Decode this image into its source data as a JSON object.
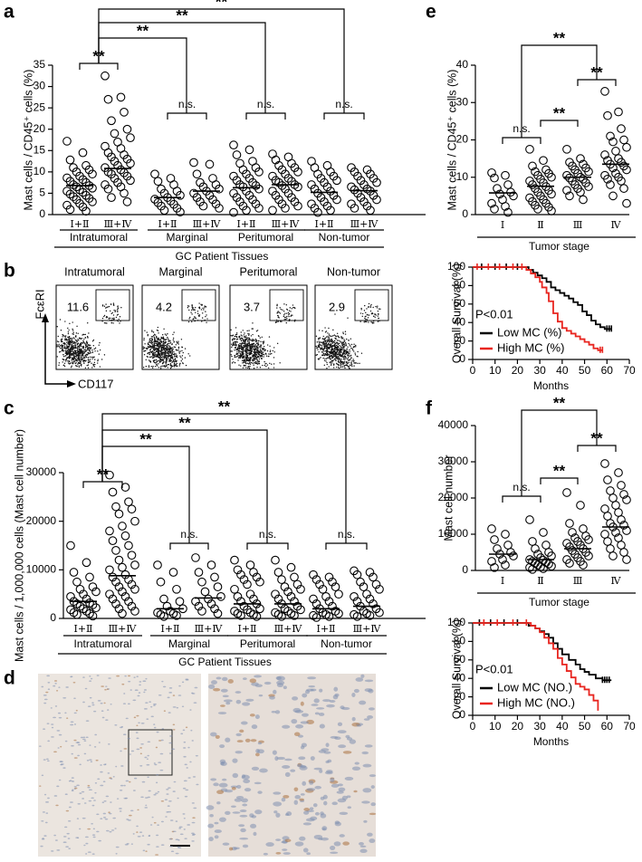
{
  "panel_labels": [
    "a",
    "b",
    "c",
    "d",
    "e",
    "f"
  ],
  "chart_data": [
    {
      "type": "strip",
      "ylabel": "Mast cells / CD45⁺ cells (%)",
      "categories": [
        "Ⅰ+Ⅱ",
        "Ⅲ+Ⅳ",
        "Ⅰ+Ⅱ",
        "Ⅲ+Ⅳ",
        "Ⅰ+Ⅱ",
        "Ⅲ+Ⅳ",
        "Ⅰ+Ⅱ",
        "Ⅲ+Ⅳ"
      ],
      "group_labels": [
        "Intratumoral",
        "Marginal",
        "Peritumoral",
        "Non-tumor"
      ],
      "xlabel": "GC Patient Tissues",
      "values": [
        [
          17.2,
          14.5,
          12.8,
          11.5,
          11,
          10.5,
          10,
          9.5,
          9,
          8.6,
          8.2,
          7.8,
          7.5,
          7,
          6.8,
          6.5,
          6.2,
          5.8,
          5.5,
          5.2,
          4.8,
          4.5,
          4.2,
          3.8,
          3.5,
          3,
          2.6,
          2.2,
          1.8,
          1.2,
          0.8
        ],
        [
          32.5,
          27.5,
          27,
          24,
          22,
          20,
          19,
          18,
          17,
          16,
          15.5,
          14.5,
          14,
          13.5,
          13,
          12.5,
          12,
          11.5,
          11,
          10.5,
          10,
          9.8,
          9.5,
          9,
          8.5,
          8,
          7.5,
          7,
          6.5,
          6,
          5,
          4,
          3
        ],
        [
          9.5,
          8.5,
          7.8,
          7,
          6,
          5.5,
          5,
          4.5,
          4,
          3.6,
          3.2,
          2.8,
          2.4,
          2,
          1.5,
          1,
          0.6
        ],
        [
          12.2,
          11.8,
          9.5,
          8.5,
          7.5,
          7,
          6.5,
          6,
          5.5,
          5,
          4.5,
          4,
          3.5,
          3,
          2.5,
          2,
          1.5
        ],
        [
          16.3,
          15.2,
          14,
          12.5,
          12,
          11,
          10.5,
          10,
          9.5,
          9,
          8.5,
          8,
          7.5,
          7,
          6.8,
          6.5,
          6,
          5.5,
          5,
          4.5,
          4,
          3.5,
          3,
          2.5,
          2,
          1.5,
          1,
          0.5
        ],
        [
          14.2,
          13.5,
          12.8,
          12,
          11.5,
          11,
          10.5,
          10,
          9.5,
          9,
          8.5,
          8,
          7.8,
          7.5,
          7,
          6.8,
          6.5,
          6,
          5.5,
          5,
          4.5,
          4,
          3.5,
          3,
          2.5,
          2,
          1.5,
          1
        ],
        [
          12.5,
          11.5,
          11,
          10,
          9.5,
          9,
          8.5,
          8,
          7.5,
          7,
          6.5,
          6,
          5.5,
          5,
          4.5,
          4,
          3.5,
          3,
          2.5,
          2,
          1.5,
          1,
          0.5
        ],
        [
          11,
          10.5,
          10,
          9.5,
          9,
          8.5,
          8,
          7.5,
          7,
          6.5,
          6,
          5.8,
          5.5,
          5,
          4.5,
          4,
          3.5,
          3,
          2.5,
          2,
          1.5,
          1
        ]
      ],
      "means": [
        6.8,
        10.8,
        4.0,
        5.5,
        6.3,
        7.0,
        5.2,
        5.6
      ],
      "ylim": [
        0,
        35
      ],
      "yticks": [
        0,
        5,
        10,
        15,
        20,
        25,
        30,
        35
      ],
      "annotations": [
        "**",
        "**",
        "**",
        "**",
        "n.s.",
        "n.s.",
        "n.s."
      ]
    },
    {
      "type": "flow",
      "panels": [
        "Intratumoral",
        "Marginal",
        "Peritumoral",
        "Non-tumor"
      ],
      "values": [
        11.6,
        4.2,
        3.7,
        2.9
      ],
      "xlabel": "CD117",
      "ylabel": "FcεRI"
    },
    {
      "type": "strip",
      "ylabel": "Mast cells / 1,000,000 cells (Mast cell number)",
      "categories": [
        "Ⅰ+Ⅱ",
        "Ⅲ+Ⅳ",
        "Ⅰ+Ⅱ",
        "Ⅲ+Ⅳ",
        "Ⅰ+Ⅱ",
        "Ⅲ+Ⅳ",
        "Ⅰ+Ⅱ",
        "Ⅲ+Ⅳ"
      ],
      "group_labels": [
        "Intratumoral",
        "Marginal",
        "Peritumoral",
        "Non-tumor"
      ],
      "xlabel": "GC Patient Tissues",
      "values": [
        [
          15000,
          11500,
          9500,
          8500,
          7500,
          6500,
          6000,
          5500,
          5000,
          4500,
          4000,
          3500,
          3200,
          3000,
          2800,
          2500,
          2200,
          2000,
          1800,
          1500,
          1200,
          1000,
          800,
          500
        ],
        [
          29500,
          27000,
          26000,
          24000,
          23000,
          22500,
          21500,
          20000,
          19000,
          18000,
          17000,
          16000,
          15000,
          14000,
          13000,
          12000,
          11000,
          10500,
          10000,
          9000,
          8500,
          8000,
          7500,
          7000,
          6500,
          6000,
          5500,
          5000,
          4500,
          4000,
          3500,
          3000,
          2500,
          2000,
          1500,
          1000
        ],
        [
          11000,
          9500,
          7500,
          6000,
          4000,
          3500,
          2500,
          2000,
          1500,
          1200,
          1000,
          800,
          600,
          400
        ],
        [
          12500,
          11000,
          9500,
          8500,
          7500,
          6500,
          5500,
          4500,
          4000,
          3500,
          3000,
          2500,
          2000,
          1500,
          1000
        ],
        [
          12000,
          11000,
          10000,
          9500,
          9000,
          8500,
          8000,
          7500,
          7000,
          6000,
          5000,
          4500,
          4000,
          3500,
          3000,
          2500,
          2000,
          1800,
          1500,
          1200,
          1000,
          800,
          600,
          400
        ],
        [
          12000,
          10500,
          9500,
          8500,
          8000,
          7000,
          6500,
          6000,
          5500,
          5000,
          4500,
          4000,
          3500,
          3000,
          2500,
          2000,
          1800,
          1500,
          1200,
          1000,
          800,
          600,
          400
        ],
        [
          9000,
          8500,
          8000,
          7500,
          7000,
          6500,
          6000,
          5000,
          4500,
          4000,
          3500,
          3000,
          2500,
          2000,
          1500,
          1200,
          1000,
          800,
          600,
          400,
          200
        ],
        [
          9800,
          9500,
          9000,
          8500,
          7500,
          7000,
          6500,
          6000,
          5000,
          4500,
          4000,
          3500,
          3000,
          2500,
          2000,
          1500,
          1200,
          1000,
          800,
          600,
          400
        ]
      ],
      "means": [
        3500,
        8800,
        2000,
        4200,
        3000,
        3000,
        2000,
        2500
      ],
      "ylim": [
        0,
        30000
      ],
      "yticks": [
        0,
        10000,
        20000,
        30000
      ],
      "annotations": [
        "**",
        "**",
        "**",
        "**",
        "n.s.",
        "n.s.",
        "n.s."
      ]
    },
    {
      "type": "strip",
      "ylabel": "Mast cells / CD45⁺ cells (%)",
      "categories": [
        "Ⅰ",
        "Ⅱ",
        "Ⅲ",
        "Ⅳ"
      ],
      "xlabel": "Tumor stage",
      "values": [
        [
          11.2,
          10.5,
          9.8,
          8,
          7,
          6,
          5.5,
          5,
          4,
          3,
          2.2,
          1.5,
          0.6
        ],
        [
          17.5,
          14.5,
          13,
          12,
          11.5,
          11,
          10.5,
          10,
          9.5,
          9,
          8.5,
          8,
          7.5,
          7,
          6.5,
          6,
          5.5,
          5,
          4.5,
          4,
          3.5,
          3,
          2.5,
          2,
          1.5,
          1
        ],
        [
          17.5,
          15,
          14,
          13.5,
          13,
          12.5,
          12,
          11.5,
          11,
          10.5,
          10,
          9.8,
          9.5,
          9,
          8.5,
          8,
          7.5,
          7,
          6.5,
          6,
          5,
          4
        ],
        [
          33,
          27.5,
          26.5,
          23,
          21,
          20,
          19.5,
          18,
          17,
          16,
          15,
          14.5,
          14,
          13.5,
          13,
          12.5,
          12,
          11,
          10.5,
          10,
          9.5,
          9,
          8,
          7,
          5,
          3
        ]
      ],
      "means": [
        5.8,
        7.6,
        10,
        13.5
      ],
      "ylim": [
        0,
        40
      ],
      "yticks": [
        0,
        10,
        20,
        30,
        40
      ],
      "annotations": [
        "n.s.",
        "**",
        "**",
        "**"
      ]
    },
    {
      "type": "km",
      "ylabel": "Overall Survival (%)",
      "xlabel": "Months",
      "annotation": "P<0.01",
      "xlim": [
        0,
        70
      ],
      "xticks": [
        0,
        10,
        20,
        30,
        40,
        50,
        60,
        70
      ],
      "ylim": [
        0,
        100
      ],
      "yticks": [
        0,
        20,
        40,
        60,
        80,
        100
      ],
      "series": [
        {
          "name": "Low MC (%)",
          "color": "#000000",
          "x": [
            0,
            25,
            27,
            29,
            31,
            33,
            35,
            37,
            39,
            41,
            43,
            45,
            47,
            49,
            51,
            53,
            55,
            57,
            59,
            62
          ],
          "values": [
            100,
            97,
            94,
            91,
            88,
            84,
            78,
            75,
            72,
            69,
            66,
            62,
            59,
            52,
            48,
            42,
            38,
            35,
            33,
            33
          ],
          "censored": [
            4,
            10,
            15,
            20,
            60,
            61,
            62
          ]
        },
        {
          "name": "High MC (%)",
          "color": "#e8251f",
          "x": [
            0,
            24,
            26,
            28,
            30,
            31,
            33,
            34,
            36,
            38,
            40,
            42,
            44,
            46,
            48,
            50,
            52,
            54,
            56,
            58
          ],
          "values": [
            100,
            97,
            93,
            89,
            84,
            78,
            72,
            63,
            50,
            41,
            34,
            31,
            28,
            25,
            22,
            19,
            16,
            12,
            10,
            10
          ],
          "censored": [
            2,
            7,
            12,
            18,
            22,
            57,
            58
          ]
        }
      ]
    },
    {
      "type": "strip",
      "ylabel": "Mast cell number",
      "categories": [
        "Ⅰ",
        "Ⅱ",
        "Ⅲ",
        "Ⅳ"
      ],
      "xlabel": "Tumor stage",
      "values": [
        [
          11500,
          10000,
          8500,
          7000,
          6000,
          5000,
          4500,
          4000,
          3000,
          2500,
          1500,
          800
        ],
        [
          14000,
          10500,
          8000,
          7000,
          6000,
          5000,
          4500,
          4000,
          3500,
          3000,
          2800,
          2500,
          2200,
          2000,
          1800,
          1500,
          1200,
          1000,
          800,
          500,
          300
        ],
        [
          21500,
          18000,
          13000,
          11500,
          10500,
          9500,
          9000,
          8500,
          8000,
          7500,
          7000,
          6500,
          6000,
          5500,
          5000,
          4500,
          4000,
          3500,
          3000,
          2500,
          2000,
          1500
        ],
        [
          29500,
          27000,
          25000,
          23500,
          22000,
          21000,
          20000,
          19500,
          18000,
          17000,
          16000,
          15000,
          14000,
          13000,
          12500,
          12000,
          11000,
          10500,
          10000,
          9000,
          8000,
          7000,
          6000,
          5000,
          4000,
          3000
        ]
      ],
      "means": [
        4500,
        3000,
        6000,
        12000
      ],
      "ylim": [
        0,
        40000
      ],
      "yticks": [
        0,
        10000,
        20000,
        30000,
        40000
      ],
      "annotations": [
        "n.s.",
        "**",
        "**",
        "**"
      ]
    },
    {
      "type": "km",
      "ylabel": "Overall Survival (%)",
      "xlabel": "Months",
      "annotation": "P<0.01",
      "xlim": [
        0,
        70
      ],
      "xticks": [
        0,
        10,
        20,
        30,
        40,
        50,
        60,
        70
      ],
      "ylim": [
        0,
        100
      ],
      "yticks": [
        0,
        20,
        40,
        60,
        80,
        100
      ],
      "series": [
        {
          "name": "Low MC (NO.)",
          "color": "#000000",
          "x": [
            0,
            25,
            28,
            30,
            32,
            34,
            36,
            38,
            40,
            43,
            46,
            48,
            50,
            52,
            55,
            58,
            62
          ],
          "values": [
            100,
            97,
            94,
            91,
            88,
            84,
            78,
            72,
            66,
            60,
            55,
            50,
            47,
            44,
            40,
            38,
            38
          ],
          "censored": [
            3,
            8,
            14,
            20,
            58,
            59,
            60,
            61
          ]
        },
        {
          "name": "High MC (NO.)",
          "color": "#e8251f",
          "x": [
            0,
            26,
            28,
            30,
            32,
            34,
            36,
            38,
            40,
            42,
            44,
            46,
            48,
            50,
            52,
            54,
            56
          ],
          "values": [
            100,
            97,
            94,
            90,
            84,
            78,
            72,
            62,
            55,
            48,
            41,
            34,
            31,
            28,
            22,
            16,
            5
          ],
          "censored": [
            5,
            11,
            18,
            24
          ]
        }
      ]
    }
  ]
}
